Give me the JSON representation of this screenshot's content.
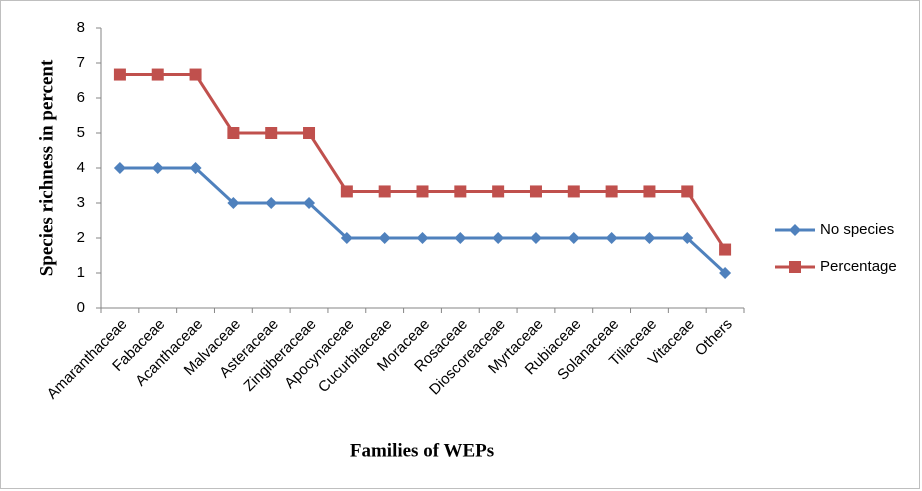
{
  "chart_data": {
    "type": "line",
    "xlabel": "Families  of WEPs",
    "ylabel": "Species richness  in percent",
    "categories": [
      "Amaranthaceae",
      "Fabaceae",
      "Acanthaceae",
      "Malvaceae",
      "Asteraceae",
      "Zingiberaceae",
      "Apocynaceae",
      "Cucurbitaceae",
      "Moraceae",
      "Rosaceae",
      "Dioscoreaceae",
      "Myrtaceae",
      "Rubiaceae",
      "Solanaceae",
      "Tiliaceae",
      "Vitaceae",
      "Others"
    ],
    "series": [
      {
        "name": "No species",
        "color": "#4f81bd",
        "marker": "diamond",
        "values": [
          4,
          4,
          4,
          3,
          3,
          3,
          2,
          2,
          2,
          2,
          2,
          2,
          2,
          2,
          2,
          2,
          1
        ]
      },
      {
        "name": "Percentage",
        "color": "#c0504d",
        "marker": "square",
        "values": [
          6.67,
          6.67,
          6.67,
          5,
          5,
          5,
          3.33,
          3.33,
          3.33,
          3.33,
          3.33,
          3.33,
          3.33,
          3.33,
          3.33,
          3.33,
          1.67
        ]
      }
    ],
    "ylim": [
      0,
      8
    ],
    "yticks": [
      0,
      1,
      2,
      3,
      4,
      5,
      6,
      7,
      8
    ],
    "legend": "right",
    "grid": false
  }
}
